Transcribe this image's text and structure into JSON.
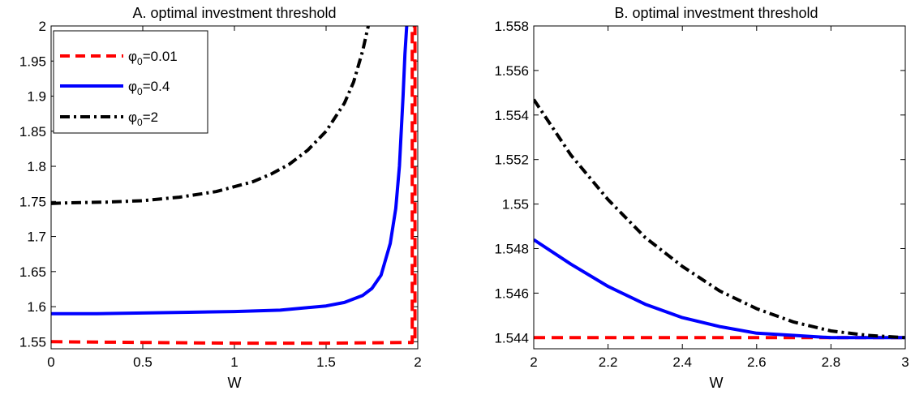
{
  "colors": {
    "red": "#ff0000",
    "blue": "#0000ff",
    "black": "#000000"
  },
  "chart_data": [
    {
      "type": "line",
      "title": "A. optimal investment threshold",
      "xlabel": "W",
      "ylabel": "",
      "xlim": [
        0,
        2
      ],
      "ylim": [
        1.54,
        2
      ],
      "xticks": [
        0,
        0.5,
        1,
        1.5,
        2
      ],
      "xtick_labels": [
        "0",
        "0.5",
        "1",
        "1.5",
        "2"
      ],
      "yticks": [
        1.55,
        1.6,
        1.65,
        1.7,
        1.75,
        1.8,
        1.85,
        1.9,
        1.95,
        2
      ],
      "ytick_labels": [
        "1.55",
        "1.6",
        "1.65",
        "1.7",
        "1.75",
        "1.8",
        "1.85",
        "1.9",
        "1.95",
        "2"
      ],
      "legend": {
        "location": "top-left"
      },
      "series": [
        {
          "name_symbol": "φ",
          "name_sub": "0",
          "name_value": "=0.01",
          "color": "#ff0000",
          "style": "dashed",
          "x": [
            0,
            0.5,
            1,
            1.5,
            1.97,
            1.97,
            1.985,
            1.985
          ],
          "y": [
            1.55,
            1.549,
            1.548,
            1.548,
            1.549,
            2.0,
            2.0,
            1.548
          ]
        },
        {
          "name_symbol": "φ",
          "name_sub": "0",
          "name_value": "=0.4",
          "color": "#0000ff",
          "style": "solid",
          "x": [
            0,
            0.25,
            0.5,
            0.75,
            1,
            1.25,
            1.5,
            1.6,
            1.7,
            1.75,
            1.8,
            1.85,
            1.88,
            1.9,
            1.92,
            1.93,
            1.94
          ],
          "y": [
            1.59,
            1.59,
            1.591,
            1.592,
            1.593,
            1.595,
            1.601,
            1.606,
            1.616,
            1.626,
            1.645,
            1.69,
            1.74,
            1.8,
            1.9,
            1.96,
            2.0
          ]
        },
        {
          "name_symbol": "φ",
          "name_sub": "0",
          "name_value": "=2",
          "color": "#000000",
          "style": "dashdot",
          "x": [
            0,
            0.1,
            0.3,
            0.5,
            0.7,
            0.9,
            1.1,
            1.2,
            1.3,
            1.4,
            1.5,
            1.6,
            1.65,
            1.7,
            1.73
          ],
          "y": [
            1.747,
            1.748,
            1.749,
            1.751,
            1.756,
            1.764,
            1.778,
            1.789,
            1.803,
            1.823,
            1.85,
            1.89,
            1.92,
            1.965,
            2.0
          ]
        }
      ]
    },
    {
      "type": "line",
      "title": "B. optimal investment threshold",
      "xlabel": "W",
      "ylabel": "",
      "xlim": [
        2,
        3
      ],
      "ylim": [
        1.5435,
        1.558
      ],
      "xticks": [
        2,
        2.2,
        2.4,
        2.6,
        2.8,
        3
      ],
      "xtick_labels": [
        "2",
        "2.2",
        "2.4",
        "2.6",
        "2.8",
        "3"
      ],
      "yticks": [
        1.544,
        1.546,
        1.548,
        1.55,
        1.552,
        1.554,
        1.556,
        1.558
      ],
      "ytick_labels": [
        "1.544",
        "1.546",
        "1.548",
        "1.55",
        "1.552",
        "1.554",
        "1.556",
        "1.558"
      ],
      "series": [
        {
          "color": "#ff0000",
          "style": "dashed",
          "x": [
            2,
            3
          ],
          "y": [
            1.544,
            1.544
          ]
        },
        {
          "color": "#0000ff",
          "style": "solid",
          "x": [
            2,
            2.1,
            2.2,
            2.3,
            2.4,
            2.5,
            2.6,
            2.7,
            2.8,
            2.9,
            3
          ],
          "y": [
            1.5484,
            1.5473,
            1.5463,
            1.5455,
            1.5449,
            1.5445,
            1.5442,
            1.5441,
            1.544,
            1.544,
            1.544
          ]
        },
        {
          "color": "#000000",
          "style": "dashdot",
          "x": [
            2,
            2.1,
            2.2,
            2.3,
            2.4,
            2.5,
            2.6,
            2.7,
            2.8,
            2.9,
            3
          ],
          "y": [
            1.5547,
            1.5522,
            1.5502,
            1.5485,
            1.5472,
            1.5461,
            1.5453,
            1.5447,
            1.5443,
            1.5441,
            1.544
          ]
        }
      ]
    }
  ]
}
